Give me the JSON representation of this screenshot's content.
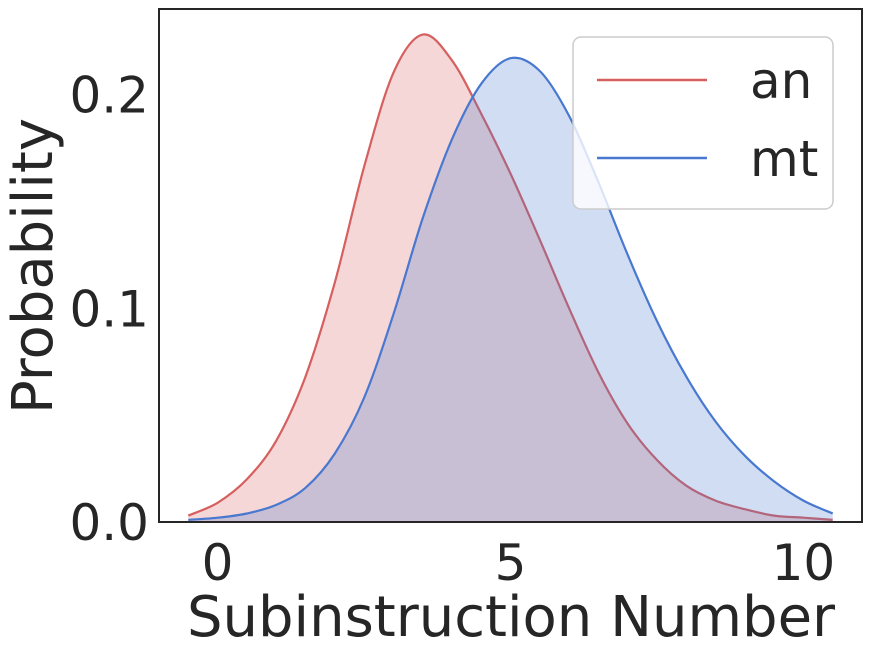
{
  "chart_data": {
    "type": "area",
    "xlabel": "Subinstruction Number",
    "ylabel": "Probability",
    "xlim": [
      -1,
      11
    ],
    "ylim": [
      0,
      0.24
    ],
    "xticks": [
      0,
      5,
      10
    ],
    "yticks": [
      0.0,
      0.1,
      0.2
    ],
    "xtick_labels": [
      "0",
      "5",
      "10"
    ],
    "ytick_labels": [
      "0.0",
      "0.1",
      "0.2"
    ],
    "grid": false,
    "legend_position": "top-right",
    "series": [
      {
        "name": "an",
        "color": "#d65f5f",
        "x": [
          -0.5,
          0,
          0.5,
          1,
          1.5,
          2,
          2.5,
          3,
          3.5,
          4,
          4.5,
          5,
          5.5,
          6,
          6.5,
          7,
          7.5,
          8,
          8.5,
          9,
          9.5,
          10,
          10.5
        ],
        "y": [
          0.003,
          0.009,
          0.02,
          0.038,
          0.068,
          0.112,
          0.166,
          0.21,
          0.228,
          0.216,
          0.191,
          0.163,
          0.132,
          0.1,
          0.07,
          0.046,
          0.029,
          0.017,
          0.01,
          0.006,
          0.003,
          0.002,
          0.001
        ]
      },
      {
        "name": "mt",
        "color": "#4878d0",
        "x": [
          -0.5,
          0,
          0.5,
          1,
          1.5,
          2,
          2.5,
          3,
          3.5,
          4,
          4.5,
          5,
          5.5,
          6,
          6.5,
          7,
          7.5,
          8,
          8.5,
          9,
          9.5,
          10,
          10.5
        ],
        "y": [
          0.001,
          0.002,
          0.004,
          0.008,
          0.016,
          0.032,
          0.058,
          0.097,
          0.142,
          0.179,
          0.205,
          0.217,
          0.211,
          0.19,
          0.159,
          0.125,
          0.094,
          0.068,
          0.047,
          0.031,
          0.019,
          0.01,
          0.004
        ]
      }
    ]
  }
}
